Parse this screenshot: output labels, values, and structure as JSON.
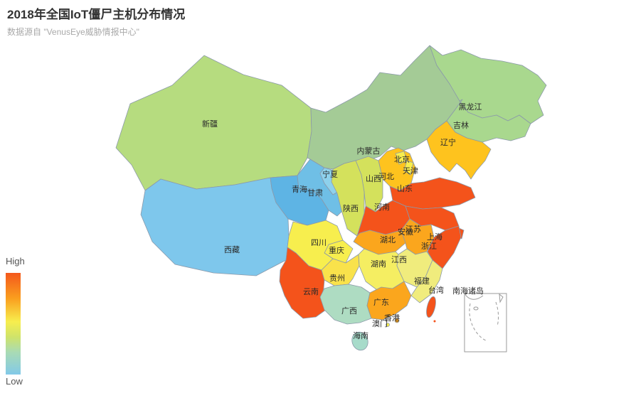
{
  "header": {
    "title": "2018年全国IoT僵尸主机分布情况",
    "subtitle": "数据源自 \"VenusEye威胁情报中心\""
  },
  "legend": {
    "high": "High",
    "low": "Low",
    "gradient": [
      "#f4581c",
      "#fa9e1e",
      "#f7ee4e",
      "#cfe36a",
      "#a9dbb4",
      "#82c9e8"
    ]
  },
  "chart_data": {
    "type": "heatmap",
    "subtype": "choropleth-map-china",
    "title": "2018年全国IoT僵尸主机分布情况",
    "legend_scale": {
      "high": "High",
      "low": "Low"
    },
    "note": "Color encodes relative IoT zombie-host density per province (red = high, blue = low); no numeric values are shown on the chart.",
    "regions": [
      {
        "id": "xinjiang",
        "name": "新疆",
        "level_rank": 3,
        "color": "#b6dc7f"
      },
      {
        "id": "xizang",
        "name": "西藏",
        "level_rank": 1,
        "color": "#7ec7ec"
      },
      {
        "id": "qinghai",
        "name": "青海",
        "level_rank": 1,
        "color": "#5eb4e4"
      },
      {
        "id": "gansu",
        "name": "甘肃",
        "level_rank": 1,
        "color": "#6fbfe6"
      },
      {
        "id": "ningxia",
        "name": "宁夏",
        "level_rank": 1,
        "color": "#8ed1ec"
      },
      {
        "id": "neimenggu",
        "name": "内蒙古",
        "level_rank": 3,
        "color": "#a4cb96"
      },
      {
        "id": "heilongjiang",
        "name": "黑龙江",
        "level_rank": 3,
        "color": "#a9d88e"
      },
      {
        "id": "jilin",
        "name": "吉林",
        "level_rank": 3,
        "color": "#a9d88e"
      },
      {
        "id": "liaoning",
        "name": "辽宁",
        "level_rank": 6,
        "color": "#fec31e"
      },
      {
        "id": "hebei",
        "name": "河北",
        "level_rank": 6,
        "color": "#fec31e"
      },
      {
        "id": "beijing",
        "name": "北京",
        "level_rank": 5,
        "color": "#f7ee4e"
      },
      {
        "id": "tianjin",
        "name": "天津",
        "level_rank": 5,
        "color": "#f7ee4e"
      },
      {
        "id": "shanxi",
        "name": "山西",
        "level_rank": 4,
        "color": "#d4e15c"
      },
      {
        "id": "shaanxi",
        "name": "陕西",
        "level_rank": 4,
        "color": "#d4e15c"
      },
      {
        "id": "shandong",
        "name": "山东",
        "level_rank": 7,
        "color": "#f4531b"
      },
      {
        "id": "henan",
        "name": "河南",
        "level_rank": 7,
        "color": "#f4531b"
      },
      {
        "id": "jiangsu",
        "name": "江苏",
        "level_rank": 7,
        "color": "#f4531b"
      },
      {
        "id": "anhui",
        "name": "安徽",
        "level_rank": 6,
        "color": "#fba61d"
      },
      {
        "id": "shanghai",
        "name": "上海",
        "level_rank": 7,
        "color": "#f4531b"
      },
      {
        "id": "zhejiang",
        "name": "浙江",
        "level_rank": 7,
        "color": "#f4531b"
      },
      {
        "id": "hubei",
        "name": "湖北",
        "level_rank": 6,
        "color": "#fba61d"
      },
      {
        "id": "chongqing",
        "name": "重庆",
        "level_rank": 5,
        "color": "#f7ee4e"
      },
      {
        "id": "sichuan",
        "name": "四川",
        "level_rank": 5,
        "color": "#f7ee4e"
      },
      {
        "id": "guizhou",
        "name": "贵州",
        "level_rank": 5,
        "color": "#f9e24b"
      },
      {
        "id": "hunan",
        "name": "湖南",
        "level_rank": 5,
        "color": "#f5ee62"
      },
      {
        "id": "jiangxi",
        "name": "江西",
        "level_rank": 5,
        "color": "#f0ec7d"
      },
      {
        "id": "fujian",
        "name": "福建",
        "level_rank": 5,
        "color": "#f0ec7d"
      },
      {
        "id": "yunnan",
        "name": "云南",
        "level_rank": 7,
        "color": "#f4531b"
      },
      {
        "id": "guangxi",
        "name": "广西",
        "level_rank": 2,
        "color": "#aedcc2"
      },
      {
        "id": "guangdong",
        "name": "广东",
        "level_rank": 6,
        "color": "#fba61d"
      },
      {
        "id": "xianggang",
        "name": "香港",
        "level_rank": 6,
        "color": "#fba61d"
      },
      {
        "id": "aomen",
        "name": "澳门",
        "level_rank": 5,
        "color": "#f7ee4e"
      },
      {
        "id": "hainan",
        "name": "海南",
        "level_rank": 2,
        "color": "#a7dbca"
      },
      {
        "id": "taiwan",
        "name": "台湾",
        "level_rank": 7,
        "color": "#f4531b"
      }
    ],
    "annotations": [
      {
        "id": "nanhai",
        "name": "南海诸岛"
      }
    ]
  }
}
